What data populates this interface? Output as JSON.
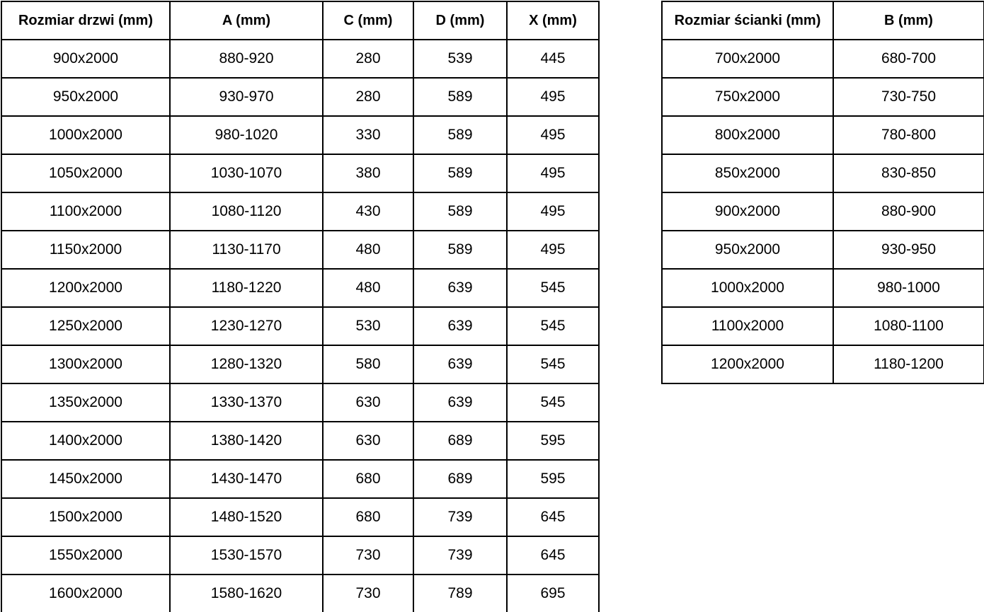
{
  "door_table": {
    "headers": [
      "Rozmiar drzwi (mm)",
      "A (mm)",
      "C (mm)",
      "D (mm)",
      "X (mm)"
    ],
    "rows": [
      [
        "900x2000",
        "880-920",
        "280",
        "539",
        "445"
      ],
      [
        "950x2000",
        "930-970",
        "280",
        "589",
        "495"
      ],
      [
        "1000x2000",
        "980-1020",
        "330",
        "589",
        "495"
      ],
      [
        "1050x2000",
        "1030-1070",
        "380",
        "589",
        "495"
      ],
      [
        "1100x2000",
        "1080-1120",
        "430",
        "589",
        "495"
      ],
      [
        "1150x2000",
        "1130-1170",
        "480",
        "589",
        "495"
      ],
      [
        "1200x2000",
        "1180-1220",
        "480",
        "639",
        "545"
      ],
      [
        "1250x2000",
        "1230-1270",
        "530",
        "639",
        "545"
      ],
      [
        "1300x2000",
        "1280-1320",
        "580",
        "639",
        "545"
      ],
      [
        "1350x2000",
        "1330-1370",
        "630",
        "639",
        "545"
      ],
      [
        "1400x2000",
        "1380-1420",
        "630",
        "689",
        "595"
      ],
      [
        "1450x2000",
        "1430-1470",
        "680",
        "689",
        "595"
      ],
      [
        "1500x2000",
        "1480-1520",
        "680",
        "739",
        "645"
      ],
      [
        "1550x2000",
        "1530-1570",
        "730",
        "739",
        "645"
      ],
      [
        "1600x2000",
        "1580-1620",
        "730",
        "789",
        "695"
      ]
    ]
  },
  "wall_table": {
    "headers": [
      "Rozmiar ścianki (mm)",
      "B (mm)"
    ],
    "rows": [
      [
        "700x2000",
        "680-700"
      ],
      [
        "750x2000",
        "730-750"
      ],
      [
        "800x2000",
        "780-800"
      ],
      [
        "850x2000",
        "830-850"
      ],
      [
        "900x2000",
        "880-900"
      ],
      [
        "950x2000",
        "930-950"
      ],
      [
        "1000x2000",
        "980-1000"
      ],
      [
        "1100x2000",
        "1080-1100"
      ],
      [
        "1200x2000",
        "1180-1200"
      ]
    ]
  },
  "colors": {
    "border": "#000000",
    "text": "#000000",
    "background": "#ffffff"
  }
}
